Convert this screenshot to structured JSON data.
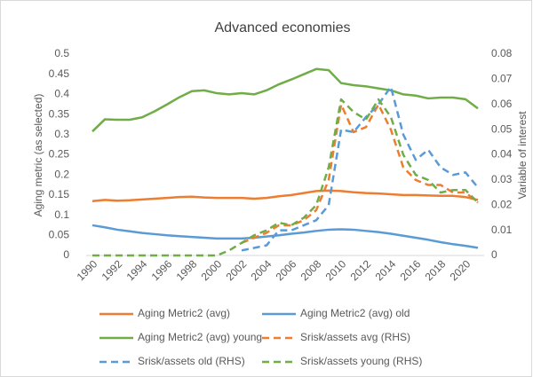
{
  "chart_data": {
    "type": "line",
    "title": "Advanced economies",
    "y_label": "Aging metric (as selected)",
    "y2_label": "Variable of interest",
    "x": [
      1990,
      1991,
      1992,
      1993,
      1994,
      1995,
      1996,
      1997,
      1998,
      1999,
      2000,
      2001,
      2002,
      2003,
      2004,
      2005,
      2006,
      2007,
      2008,
      2009,
      2010,
      2011,
      2012,
      2013,
      2014,
      2015,
      2016,
      2017,
      2018,
      2019,
      2020,
      2021
    ],
    "xlim": [
      1989.5,
      2021.5
    ],
    "xticks": [
      1990,
      1992,
      1994,
      1996,
      1998,
      2000,
      2002,
      2004,
      2006,
      2008,
      2010,
      2012,
      2014,
      2016,
      2018,
      2020
    ],
    "ylim": [
      0,
      0.5
    ],
    "yticks": [
      0,
      0.05,
      0.1,
      0.15,
      0.2,
      0.25,
      0.3,
      0.35,
      0.4,
      0.45,
      0.5
    ],
    "y2lim": [
      0,
      0.08
    ],
    "y2ticks": [
      0,
      0.01,
      0.02,
      0.03,
      0.04,
      0.05,
      0.06,
      0.07,
      0.08
    ],
    "grid": false,
    "legend": "bottom",
    "series": [
      {
        "name": "Aging Metric2 (avg)",
        "color": "#ed7d31",
        "dashed": false,
        "values": [
          0.135,
          0.138,
          0.136,
          0.137,
          0.139,
          0.141,
          0.143,
          0.145,
          0.146,
          0.144,
          0.143,
          0.143,
          0.143,
          0.141,
          0.143,
          0.147,
          0.15,
          0.155,
          0.16,
          0.161,
          0.16,
          0.157,
          0.155,
          0.154,
          0.152,
          0.15,
          0.15,
          0.149,
          0.148,
          0.148,
          0.145,
          0.138
        ]
      },
      {
        "name": "Aging Metric2 (avg) old",
        "color": "#5b9bd5",
        "dashed": false,
        "values": [
          0.075,
          0.07,
          0.064,
          0.06,
          0.056,
          0.053,
          0.05,
          0.048,
          0.046,
          0.044,
          0.042,
          0.042,
          0.042,
          0.044,
          0.047,
          0.05,
          0.054,
          0.057,
          0.061,
          0.064,
          0.065,
          0.064,
          0.061,
          0.058,
          0.054,
          0.049,
          0.044,
          0.039,
          0.033,
          0.028,
          0.024,
          0.019
        ]
      },
      {
        "name": "Aging Metric2 (avg) young",
        "color": "#70ad47",
        "dashed": false,
        "values": [
          0.308,
          0.338,
          0.337,
          0.337,
          0.343,
          0.358,
          0.375,
          0.393,
          0.408,
          0.41,
          0.403,
          0.4,
          0.403,
          0.4,
          0.41,
          0.425,
          0.437,
          0.45,
          0.463,
          0.46,
          0.428,
          0.423,
          0.42,
          0.415,
          0.41,
          0.4,
          0.397,
          0.39,
          0.392,
          0.392,
          0.388,
          0.365
        ]
      },
      {
        "name": "Srisk/assets avg (RHS)",
        "color": "#ed7d31",
        "dashed": true,
        "axis": "y2",
        "values": [
          null,
          null,
          null,
          null,
          null,
          null,
          null,
          null,
          null,
          null,
          null,
          null,
          0.005,
          0.007,
          0.009,
          0.012,
          0.012,
          0.014,
          0.018,
          0.03,
          0.06,
          0.049,
          0.051,
          0.06,
          0.05,
          0.035,
          0.03,
          0.028,
          0.028,
          0.025,
          0.025,
          0.021
        ]
      },
      {
        "name": "Srisk/assets old (RHS)",
        "color": "#5b9bd5",
        "dashed": true,
        "axis": "y2",
        "values": [
          null,
          null,
          null,
          null,
          null,
          null,
          null,
          null,
          null,
          null,
          null,
          null,
          0.002,
          0.003,
          0.004,
          0.01,
          0.01,
          0.012,
          0.014,
          0.02,
          0.05,
          0.049,
          0.055,
          0.06,
          0.067,
          0.048,
          0.038,
          0.042,
          0.035,
          0.032,
          0.033,
          0.027
        ]
      },
      {
        "name": "Srisk/assets young (RHS)",
        "color": "#70ad47",
        "dashed": true,
        "axis": "y2",
        "values": [
          0,
          0,
          0,
          0,
          0,
          0,
          0,
          0,
          0,
          0,
          0,
          0.002,
          0.005,
          0.008,
          0.01,
          0.013,
          0.012,
          0.015,
          0.02,
          0.035,
          0.062,
          0.057,
          0.054,
          0.062,
          0.055,
          0.04,
          0.032,
          0.03,
          0.025,
          0.026,
          0.026,
          0.021
        ]
      }
    ]
  }
}
